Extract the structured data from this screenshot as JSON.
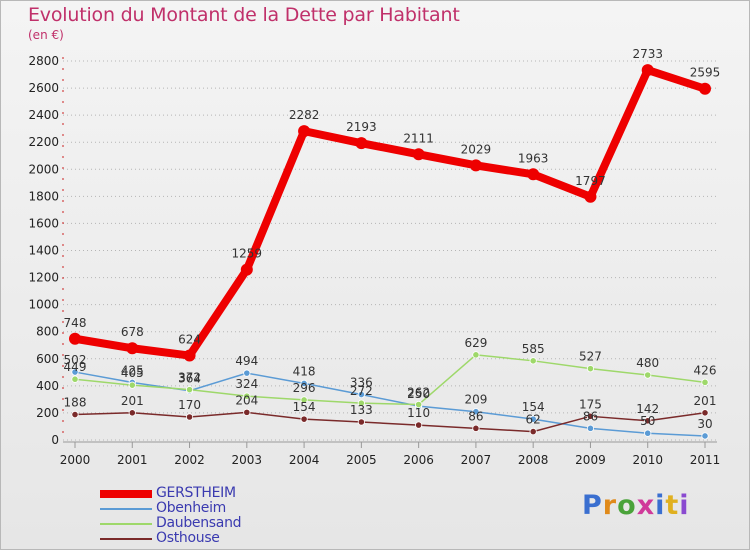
{
  "title": "Evolution du Montant de la Dette par Habitant",
  "subtitle": "(en €)",
  "brand": {
    "text": "Proxiti",
    "colors": [
      "#3a6fd0",
      "#e08a1a",
      "#4aa33a",
      "#d03a9a",
      "#3a6fd0",
      "#e0b020",
      "#8a4ad0"
    ]
  },
  "chart_data": {
    "type": "line",
    "x": [
      "2000",
      "2001",
      "2002",
      "2003",
      "2004",
      "2005",
      "2006",
      "2007",
      "2008",
      "2009",
      "2010",
      "2011"
    ],
    "ylim": [
      0,
      2800
    ],
    "yticks": [
      0,
      200,
      400,
      600,
      800,
      1000,
      1200,
      1400,
      1600,
      1800,
      2000,
      2200,
      2400,
      2600,
      2800
    ],
    "grid": "dotted horizontal",
    "legend_position": "bottom-left",
    "series": [
      {
        "name": "GERSTHEIM",
        "color": "#ee0000",
        "thick": true,
        "values": [
          748,
          678,
          624,
          1259,
          2282,
          2193,
          2111,
          2029,
          1963,
          1797,
          2733,
          2595
        ],
        "labels": [
          "748",
          "678",
          "624",
          "1259",
          "2282",
          "2193",
          "2111",
          "2029",
          "1963",
          "1797",
          "2733",
          "2595"
        ]
      },
      {
        "name": "Obenheim",
        "color": "#5b9bd5",
        "thick": false,
        "values": [
          502,
          425,
          364,
          494,
          418,
          336,
          250,
          209,
          154,
          86,
          50,
          30
        ],
        "labels": [
          "502",
          "425",
          "364",
          "494",
          "418",
          "336",
          "250",
          "209",
          "154",
          "86",
          "50",
          "30"
        ]
      },
      {
        "name": "Daubensand",
        "color": "#9ed86a",
        "thick": false,
        "values": [
          449,
          405,
          372,
          324,
          296,
          272,
          262,
          629,
          585,
          527,
          480,
          426
        ],
        "labels": [
          "449",
          "405",
          "372",
          "324",
          "296",
          "272",
          "262",
          "629",
          "585",
          "527",
          "480",
          "426"
        ]
      },
      {
        "name": "Osthouse",
        "color": "#7a2a2a",
        "thick": false,
        "values": [
          188,
          201,
          170,
          204,
          154,
          133,
          110,
          86,
          62,
          175,
          142,
          201
        ],
        "labels": [
          "188",
          "201",
          "170",
          "204",
          "154",
          "133",
          "110",
          "86",
          "62",
          "175",
          "142",
          "201"
        ]
      }
    ]
  }
}
